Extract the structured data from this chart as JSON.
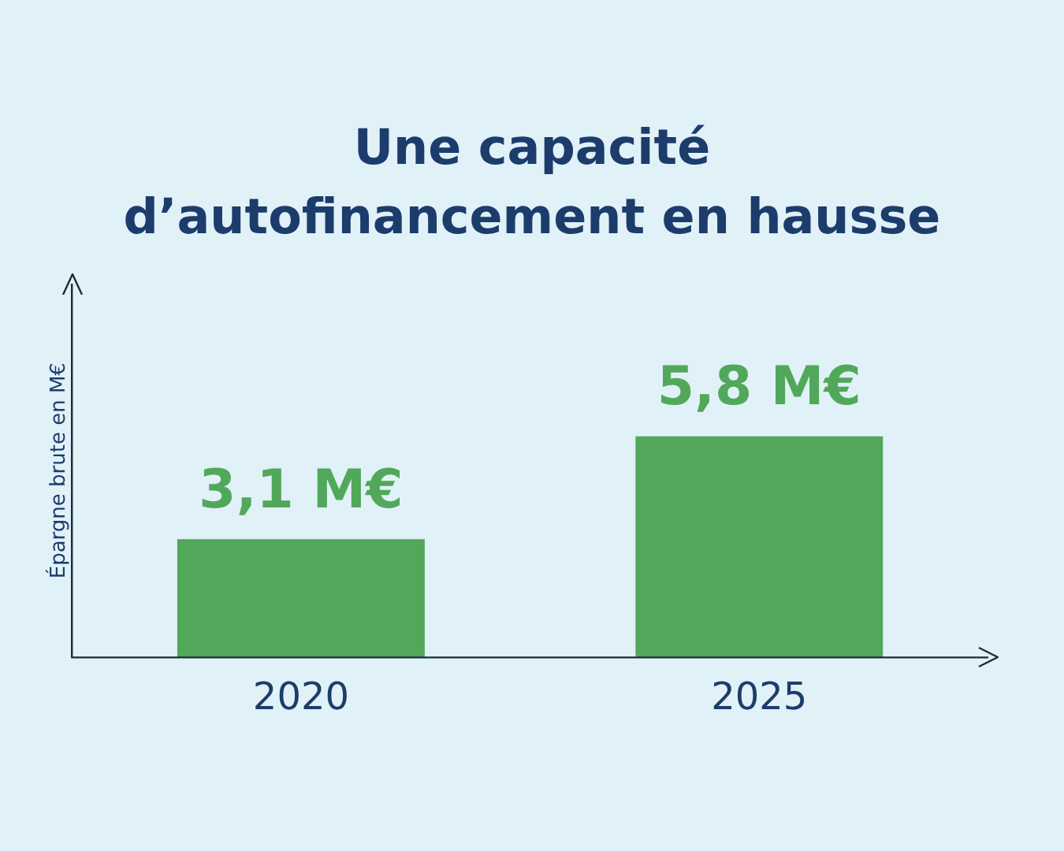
{
  "chart_data": {
    "type": "bar",
    "title": "Une capacité d’autofinancement en hausse",
    "ylabel": "Épargne brute en M€",
    "categories": [
      "2020",
      "2025"
    ],
    "values": [
      3.1,
      5.8
    ],
    "value_labels": [
      "3,1 M€",
      "5,8 M€"
    ],
    "color": "#52a85a",
    "ylim": [
      0,
      9.8
    ],
    "tick_labels": "x",
    "grid": false,
    "legend": false
  }
}
